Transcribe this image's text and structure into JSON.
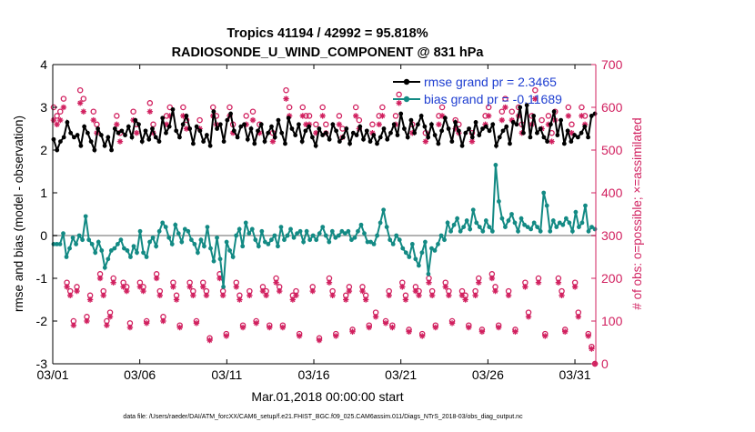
{
  "chart_data": {
    "type": "line",
    "title_line1": "Tropics 41194 / 42992 = 95.818%",
    "title_line2": "RADIOSONDE_U_WIND_COMPONENT @ 831 hPa",
    "xlabel": "Mar.01,2018 00:00:00 start",
    "ylabel_left": "rmse and bias (model - observation)",
    "ylabel_right": "# of obs: o=possible; ×=assimilated",
    "footer": "data file: /Users/raeder/DAI/ATM_forcXX/CAM6_setup/f.e21.FHIST_BGC.f09_025.CAM6assim.011/Diags_NTrS_2018-03/obs_diag_output.nc",
    "xlim": [
      0,
      31.2
    ],
    "ylim_left": [
      -3,
      4
    ],
    "ylim_right": [
      0,
      700
    ],
    "x_ticks": [
      0,
      5,
      10,
      15,
      20,
      25,
      30
    ],
    "x_tick_labels": [
      "03/01",
      "03/06",
      "03/11",
      "03/16",
      "03/21",
      "03/26",
      "03/31"
    ],
    "y_left_ticks": [
      -3,
      -2,
      -1,
      0,
      1,
      2,
      3,
      4
    ],
    "y_left_tick_labels": [
      "-3",
      "-2",
      "-1",
      "0",
      "1",
      "2",
      "3",
      "4"
    ],
    "y_right_ticks": [
      0,
      100,
      200,
      300,
      400,
      500,
      600,
      700
    ],
    "y_right_tick_labels": [
      "0",
      "100",
      "200",
      "300",
      "400",
      "500",
      "600",
      "700"
    ],
    "legend": [
      "rmse grand pr = 2.3465",
      "bias grand pr = -0.11689"
    ],
    "colors": {
      "rmse": "#000000",
      "bias": "#138a84",
      "obs": "#d1205f",
      "axis_right": "#d1205f",
      "zero_line": "#b3b3b3",
      "legend_text": "#1f3fd1"
    },
    "series": [
      {
        "name": "rmse",
        "values": [
          2.25,
          2.0,
          2.2,
          2.3,
          2.65,
          2.4,
          2.3,
          2.35,
          2.1,
          2.55,
          2.4,
          2.2,
          2.0,
          2.5,
          2.35,
          2.1,
          2.3,
          2.0,
          2.5,
          2.4,
          2.45,
          2.35,
          2.55,
          2.3,
          2.7,
          2.6,
          2.2,
          2.45,
          2.25,
          2.5,
          2.3,
          2.2,
          2.75,
          2.4,
          2.55,
          2.95,
          2.45,
          2.3,
          2.6,
          2.8,
          2.5,
          2.15,
          2.55,
          2.45,
          2.2,
          2.35,
          2.1,
          2.9,
          2.5,
          2.6,
          2.2,
          2.7,
          2.85,
          2.45,
          2.3,
          2.55,
          2.6,
          2.25,
          2.5,
          2.15,
          2.45,
          2.6,
          2.2,
          2.4,
          2.55,
          2.3,
          2.7,
          2.4,
          2.15,
          2.75,
          2.5,
          2.35,
          2.6,
          2.2,
          2.45,
          2.55,
          2.3,
          2.1,
          2.5,
          2.35,
          2.4,
          2.25,
          2.6,
          2.45,
          2.2,
          2.3,
          2.5,
          2.15,
          2.4,
          2.35,
          2.55,
          2.25,
          2.45,
          2.2,
          2.35,
          2.15,
          2.3,
          2.5,
          2.25,
          2.4,
          2.6,
          2.35,
          2.85,
          2.5,
          2.3,
          2.7,
          2.4,
          2.6,
          2.8,
          2.55,
          2.3,
          2.6,
          2.35,
          2.15,
          2.45,
          2.75,
          2.5,
          2.2,
          2.65,
          2.45,
          2.1,
          2.4,
          2.5,
          2.3,
          2.65,
          2.35,
          2.5,
          2.55,
          2.45,
          2.6,
          2.1,
          2.3,
          2.45,
          2.55,
          2.15,
          2.65,
          2.6,
          3.0,
          2.4,
          3.05,
          2.3,
          2.8,
          2.4,
          2.5,
          2.3,
          2.2,
          2.6,
          2.9,
          2.35,
          2.7,
          2.15,
          2.45,
          2.2,
          2.35,
          2.3,
          2.4,
          2.55,
          2.3,
          2.8,
          2.85
        ]
      },
      {
        "name": "bias",
        "values": [
          -0.2,
          -0.2,
          -0.2,
          0.05,
          -0.5,
          -0.3,
          -0.05,
          -0.2,
          0.0,
          -0.1,
          0.45,
          -0.1,
          -0.2,
          -0.4,
          -0.15,
          -0.35,
          -0.75,
          -0.55,
          -0.35,
          -0.3,
          -0.2,
          -0.1,
          -0.3,
          -0.35,
          -0.5,
          -0.25,
          -0.4,
          0.1,
          -0.4,
          -0.5,
          -0.15,
          -0.05,
          -0.25,
          0.1,
          0.3,
          0.2,
          -0.05,
          -0.2,
          0.25,
          0.05,
          -0.15,
          0.15,
          0.1,
          -0.1,
          -0.2,
          -0.4,
          -0.1,
          -0.25,
          0.2,
          -0.3,
          -0.6,
          -0.05,
          -0.55,
          -1.2,
          -0.15,
          -0.35,
          -0.5,
          0.0,
          0.15,
          -0.25,
          0.3,
          0.05,
          0.15,
          -0.1,
          -0.25,
          0.1,
          -0.15,
          -0.2,
          -0.1,
          0.0,
          -0.25,
          0.2,
          -0.1,
          0.0,
          0.15,
          -0.05,
          0.05,
          0.1,
          -0.15,
          0.1,
          -0.1,
          0.0,
          -0.1,
          0.05,
          0.2,
          0.0,
          -0.15,
          0.1,
          -0.05,
          0.0,
          0.1,
          0.05,
          0.1,
          -0.1,
          -0.05,
          0.1,
          0.25,
          0.05,
          -0.15,
          -0.15,
          -0.2,
          0.0,
          0.3,
          0.6,
          0.2,
          -0.1,
          -0.2,
          0.0,
          -0.1,
          -0.3,
          -0.4,
          -0.5,
          -0.2,
          -0.55,
          -0.7,
          -0.4,
          -0.15,
          -0.9,
          -0.3,
          -0.35,
          -0.2,
          0.0,
          -0.1,
          0.3,
          0.1,
          0.25,
          0.4,
          0.1,
          0.2,
          0.35,
          0.15,
          0.6,
          0.3,
          0.2,
          0.1,
          0.35,
          0.2,
          0.1,
          1.65,
          0.8,
          0.4,
          0.2,
          0.35,
          0.5,
          0.3,
          0.1,
          0.4,
          0.25,
          0.2,
          0.15,
          0.3,
          0.2,
          0.1,
          1.0,
          0.7,
          0.1,
          0.35,
          0.2,
          0.3,
          0.25,
          0.4,
          0.3,
          0.1,
          0.55,
          0.2,
          0.3,
          0.7,
          0.1,
          0.2,
          0.15
        ]
      },
      {
        "name": "obs_possible",
        "values": [
          600,
          580,
          590,
          620,
          190,
          170,
          100,
          180,
          640,
          620,
          110,
          160,
          590,
          560,
          210,
          170,
          100,
          120,
          200,
          580,
          540,
          190,
          180,
          95,
          590,
          560,
          190,
          180,
          100,
          610,
          560,
          210,
          170,
          110,
          580,
          600,
          190,
          160,
          90,
          600,
          570,
          190,
          170,
          100,
          570,
          190,
          170,
          60,
          600,
          580,
          210,
          170,
          70,
          600,
          560,
          190,
          160,
          90,
          580,
          170,
          590,
          100,
          560,
          180,
          170,
          90,
          540,
          200,
          180,
          90,
          640,
          600,
          160,
          170,
          70,
          600,
          580,
          580,
          180,
          560,
          60,
          600,
          560,
          200,
          170,
          70,
          580,
          550,
          160,
          180,
          80,
          600,
          570,
          180,
          160,
          90,
          560,
          120,
          580,
          600,
          100,
          170,
          90,
          580,
          630,
          190,
          160,
          80,
          560,
          180,
          170,
          70,
          540,
          200,
          170,
          90,
          580,
          600,
          190,
          170,
          100,
          570,
          560,
          170,
          160,
          90,
          540,
          170,
          200,
          80,
          580,
          600,
          210,
          180,
          90,
          590,
          620,
          170,
          590,
          80,
          600,
          560,
          190,
          120,
          580,
          640,
          200,
          570,
          70,
          580,
          540,
          590,
          200,
          170,
          80,
          600,
          560,
          190,
          120,
          600,
          580,
          70,
          40,
          0
        ]
      },
      {
        "name": "obs_assimilated",
        "values": [
          570,
          560,
          570,
          600,
          180,
          160,
          90,
          170,
          610,
          590,
          100,
          150,
          570,
          540,
          200,
          160,
          90,
          110,
          190,
          560,
          520,
          180,
          170,
          85,
          570,
          540,
          180,
          170,
          95,
          590,
          540,
          200,
          160,
          100,
          560,
          580,
          180,
          150,
          85,
          580,
          550,
          180,
          160,
          95,
          550,
          180,
          160,
          55,
          580,
          560,
          200,
          160,
          65,
          580,
          540,
          180,
          150,
          85,
          560,
          160,
          570,
          95,
          540,
          170,
          160,
          85,
          520,
          190,
          170,
          85,
          620,
          580,
          150,
          160,
          65,
          580,
          560,
          560,
          170,
          540,
          55,
          580,
          540,
          190,
          160,
          65,
          560,
          530,
          150,
          170,
          75,
          580,
          550,
          170,
          150,
          85,
          540,
          110,
          560,
          580,
          95,
          160,
          85,
          560,
          610,
          180,
          150,
          75,
          540,
          170,
          160,
          65,
          520,
          190,
          160,
          85,
          560,
          580,
          180,
          160,
          95,
          550,
          540,
          160,
          150,
          85,
          520,
          160,
          190,
          75,
          560,
          580,
          200,
          170,
          85,
          570,
          600,
          160,
          570,
          75,
          580,
          540,
          180,
          110,
          560,
          620,
          190,
          550,
          65,
          560,
          520,
          570,
          190,
          160,
          75,
          580,
          540,
          180,
          110,
          580,
          560,
          65,
          35,
          0
        ]
      }
    ]
  }
}
